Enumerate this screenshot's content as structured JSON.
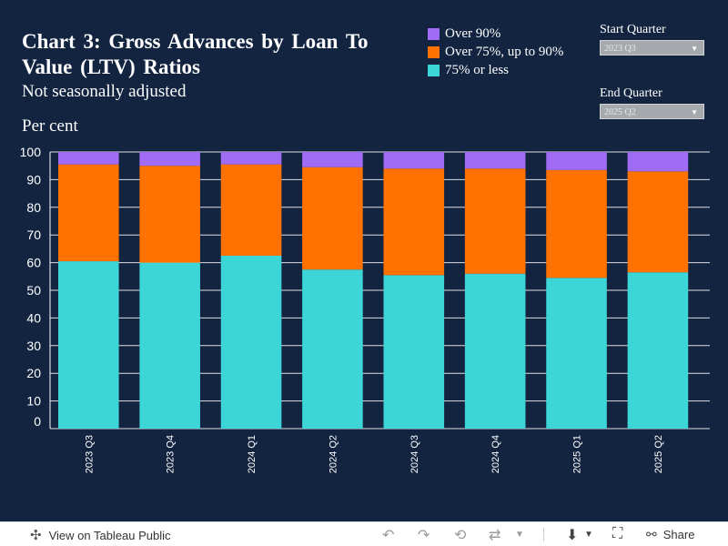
{
  "title": "Chart 3: Gross Advances by Loan To Value (LTV) Ratios",
  "subtitle": "Not seasonally adjusted",
  "units": "Per cent",
  "legend": [
    {
      "label": "Over 90%",
      "color": "#a06cf6"
    },
    {
      "label": "Over 75%, up to 90%",
      "color": "#ff7100"
    },
    {
      "label": "75% or less",
      "color": "#3cd6d8"
    }
  ],
  "filters": {
    "start": {
      "label": "Start Quarter",
      "value": "2023 Q3"
    },
    "end": {
      "label": "End Quarter",
      "value": "2025 Q2"
    }
  },
  "chart_data": {
    "type": "bar",
    "stacked": true,
    "categories": [
      "2023 Q3",
      "2023 Q4",
      "2024 Q1",
      "2024 Q2",
      "2024 Q3",
      "2024 Q4",
      "2025 Q1",
      "2025 Q2"
    ],
    "series": [
      {
        "name": "75% or less",
        "color": "#3cd6d8",
        "values": [
          60.5,
          60.0,
          62.5,
          57.5,
          55.5,
          56.0,
          54.5,
          56.5
        ]
      },
      {
        "name": "Over 75%, up to 90%",
        "color": "#ff7100",
        "values": [
          35.0,
          35.0,
          33.0,
          37.0,
          38.5,
          38.0,
          39.0,
          36.5
        ]
      },
      {
        "name": "Over 90%",
        "color": "#a06cf6",
        "values": [
          4.5,
          5.0,
          4.5,
          5.5,
          6.0,
          6.0,
          6.5,
          7.0
        ]
      }
    ],
    "ylim": [
      0,
      100
    ],
    "yticks": [
      0,
      10,
      20,
      30,
      40,
      50,
      60,
      70,
      80,
      90,
      100
    ],
    "grid": true
  },
  "toolbar": {
    "view_label": "View on Tableau Public",
    "share_label": "Share",
    "icons": [
      "tableau-logo-icon",
      "undo-icon",
      "redo-icon",
      "revert-icon",
      "refresh-icon",
      "download-icon",
      "fullscreen-icon",
      "share-icon"
    ]
  }
}
